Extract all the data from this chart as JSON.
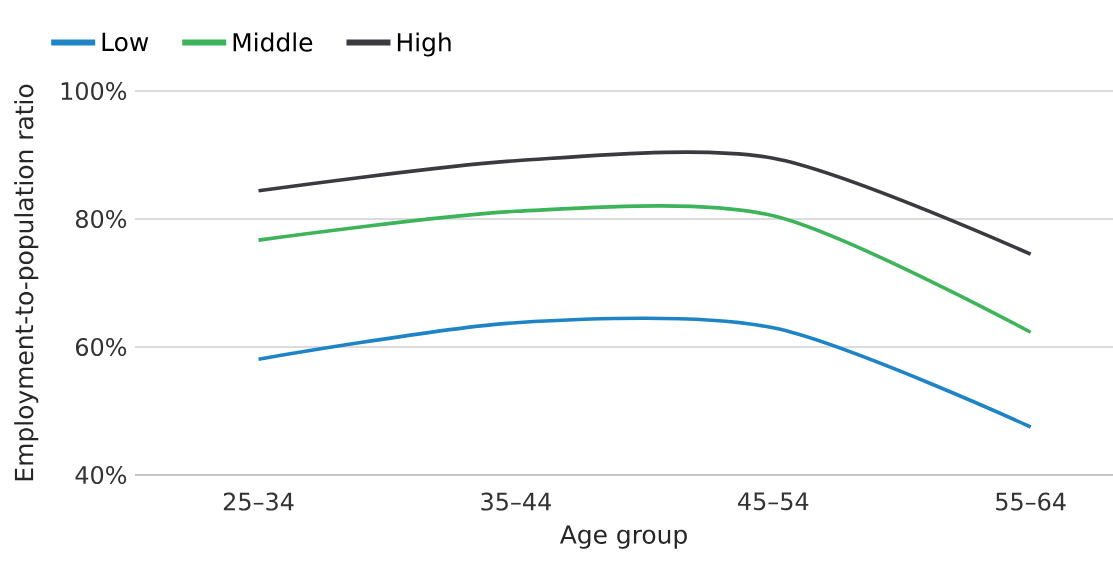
{
  "chart_data": {
    "type": "line",
    "xlabel": "Age group",
    "ylabel": "Employment-to-population ratio",
    "categories": [
      "25–34",
      "35–44",
      "45–54",
      "55–64"
    ],
    "series": [
      {
        "name": "Low",
        "color": "#1f84c6",
        "values": [
          58.1,
          63.8,
          63.0,
          47.5
        ]
      },
      {
        "name": "Middle",
        "color": "#3db35a",
        "values": [
          76.7,
          81.2,
          80.5,
          62.3
        ]
      },
      {
        "name": "High",
        "color": "#3a3a40",
        "values": [
          84.4,
          89.1,
          89.5,
          74.5
        ]
      }
    ],
    "ylim": [
      40,
      100
    ],
    "yticks": [
      {
        "value": 40,
        "label": "40%"
      },
      {
        "value": 60,
        "label": "60%"
      },
      {
        "value": 80,
        "label": "80%"
      },
      {
        "value": 100,
        "label": "100%"
      }
    ],
    "grid": "y",
    "legend": "top left",
    "marker": "none",
    "line_style": "solid"
  }
}
